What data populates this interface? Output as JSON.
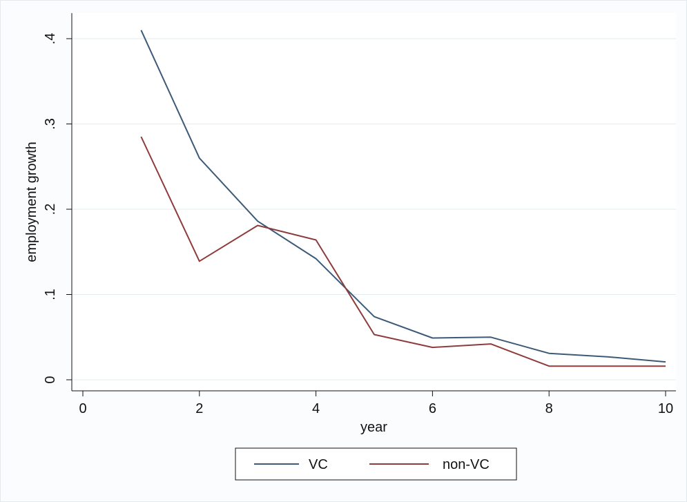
{
  "chart_data": {
    "type": "line",
    "title": "",
    "xlabel": "year",
    "ylabel": "employment growth",
    "xlim": [
      0,
      10
    ],
    "ylim": [
      0,
      0.4
    ],
    "x_ticks": [
      0,
      2,
      4,
      6,
      8,
      10
    ],
    "x_tick_labels": [
      "0",
      "2",
      "4",
      "6",
      "8",
      "10"
    ],
    "y_ticks": [
      0,
      0.1,
      0.2,
      0.3,
      0.4
    ],
    "y_tick_labels": [
      "0",
      ".1",
      ".2",
      ".3",
      ".4"
    ],
    "grid": true,
    "legend_position": "bottom",
    "x": [
      1,
      2,
      3,
      4,
      5,
      6,
      7,
      8,
      9,
      10
    ],
    "series": [
      {
        "name": "VC",
        "color": "#3c5a78",
        "values": [
          0.41,
          0.26,
          0.186,
          0.142,
          0.074,
          0.049,
          0.05,
          0.031,
          0.027,
          0.021
        ]
      },
      {
        "name": "non-VC",
        "color": "#8e3b3b",
        "values": [
          0.285,
          0.139,
          0.181,
          0.164,
          0.053,
          0.038,
          0.042,
          0.016,
          0.016,
          0.016
        ]
      }
    ]
  }
}
